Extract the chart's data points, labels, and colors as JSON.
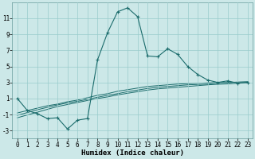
{
  "xlabel": "Humidex (Indice chaleur)",
  "background_color": "#cce8e8",
  "grid_color": "#99cccc",
  "line_color": "#1a6b6b",
  "x_data": [
    0,
    1,
    2,
    3,
    4,
    5,
    6,
    7,
    8,
    9,
    10,
    11,
    12,
    13,
    14,
    15,
    16,
    17,
    18,
    19,
    20,
    21,
    22,
    23
  ],
  "y_main": [
    1.0,
    -0.5,
    -0.9,
    -1.5,
    -1.4,
    -2.8,
    -1.7,
    -1.5,
    5.8,
    9.2,
    11.8,
    12.3,
    11.2,
    6.3,
    6.2,
    7.2,
    6.5,
    5.0,
    4.0,
    3.3,
    3.0,
    3.2,
    2.9,
    3.0
  ],
  "y_line1": [
    -0.8,
    -0.5,
    -0.2,
    0.1,
    0.3,
    0.6,
    0.8,
    1.1,
    1.4,
    1.6,
    1.9,
    2.1,
    2.3,
    2.5,
    2.6,
    2.7,
    2.8,
    2.85,
    2.9,
    2.95,
    3.0,
    3.0,
    3.05,
    3.1
  ],
  "y_line2": [
    -1.1,
    -0.75,
    -0.4,
    -0.1,
    0.2,
    0.45,
    0.65,
    0.9,
    1.15,
    1.4,
    1.6,
    1.85,
    2.05,
    2.25,
    2.4,
    2.5,
    2.6,
    2.7,
    2.75,
    2.8,
    2.88,
    2.9,
    2.95,
    3.0
  ],
  "y_line3": [
    -1.4,
    -1.05,
    -0.7,
    -0.35,
    0.0,
    0.25,
    0.5,
    0.75,
    1.0,
    1.2,
    1.45,
    1.65,
    1.85,
    2.05,
    2.2,
    2.3,
    2.4,
    2.5,
    2.6,
    2.7,
    2.78,
    2.82,
    2.9,
    2.95
  ],
  "ylim": [
    -4,
    13
  ],
  "xlim": [
    -0.5,
    23.5
  ],
  "yticks": [
    -3,
    -1,
    1,
    3,
    5,
    7,
    9,
    11
  ],
  "xticks": [
    0,
    1,
    2,
    3,
    4,
    5,
    6,
    7,
    8,
    9,
    10,
    11,
    12,
    13,
    14,
    15,
    16,
    17,
    18,
    19,
    20,
    21,
    22,
    23
  ],
  "xlabel_fontsize": 6.5,
  "tick_fontsize": 5.5
}
